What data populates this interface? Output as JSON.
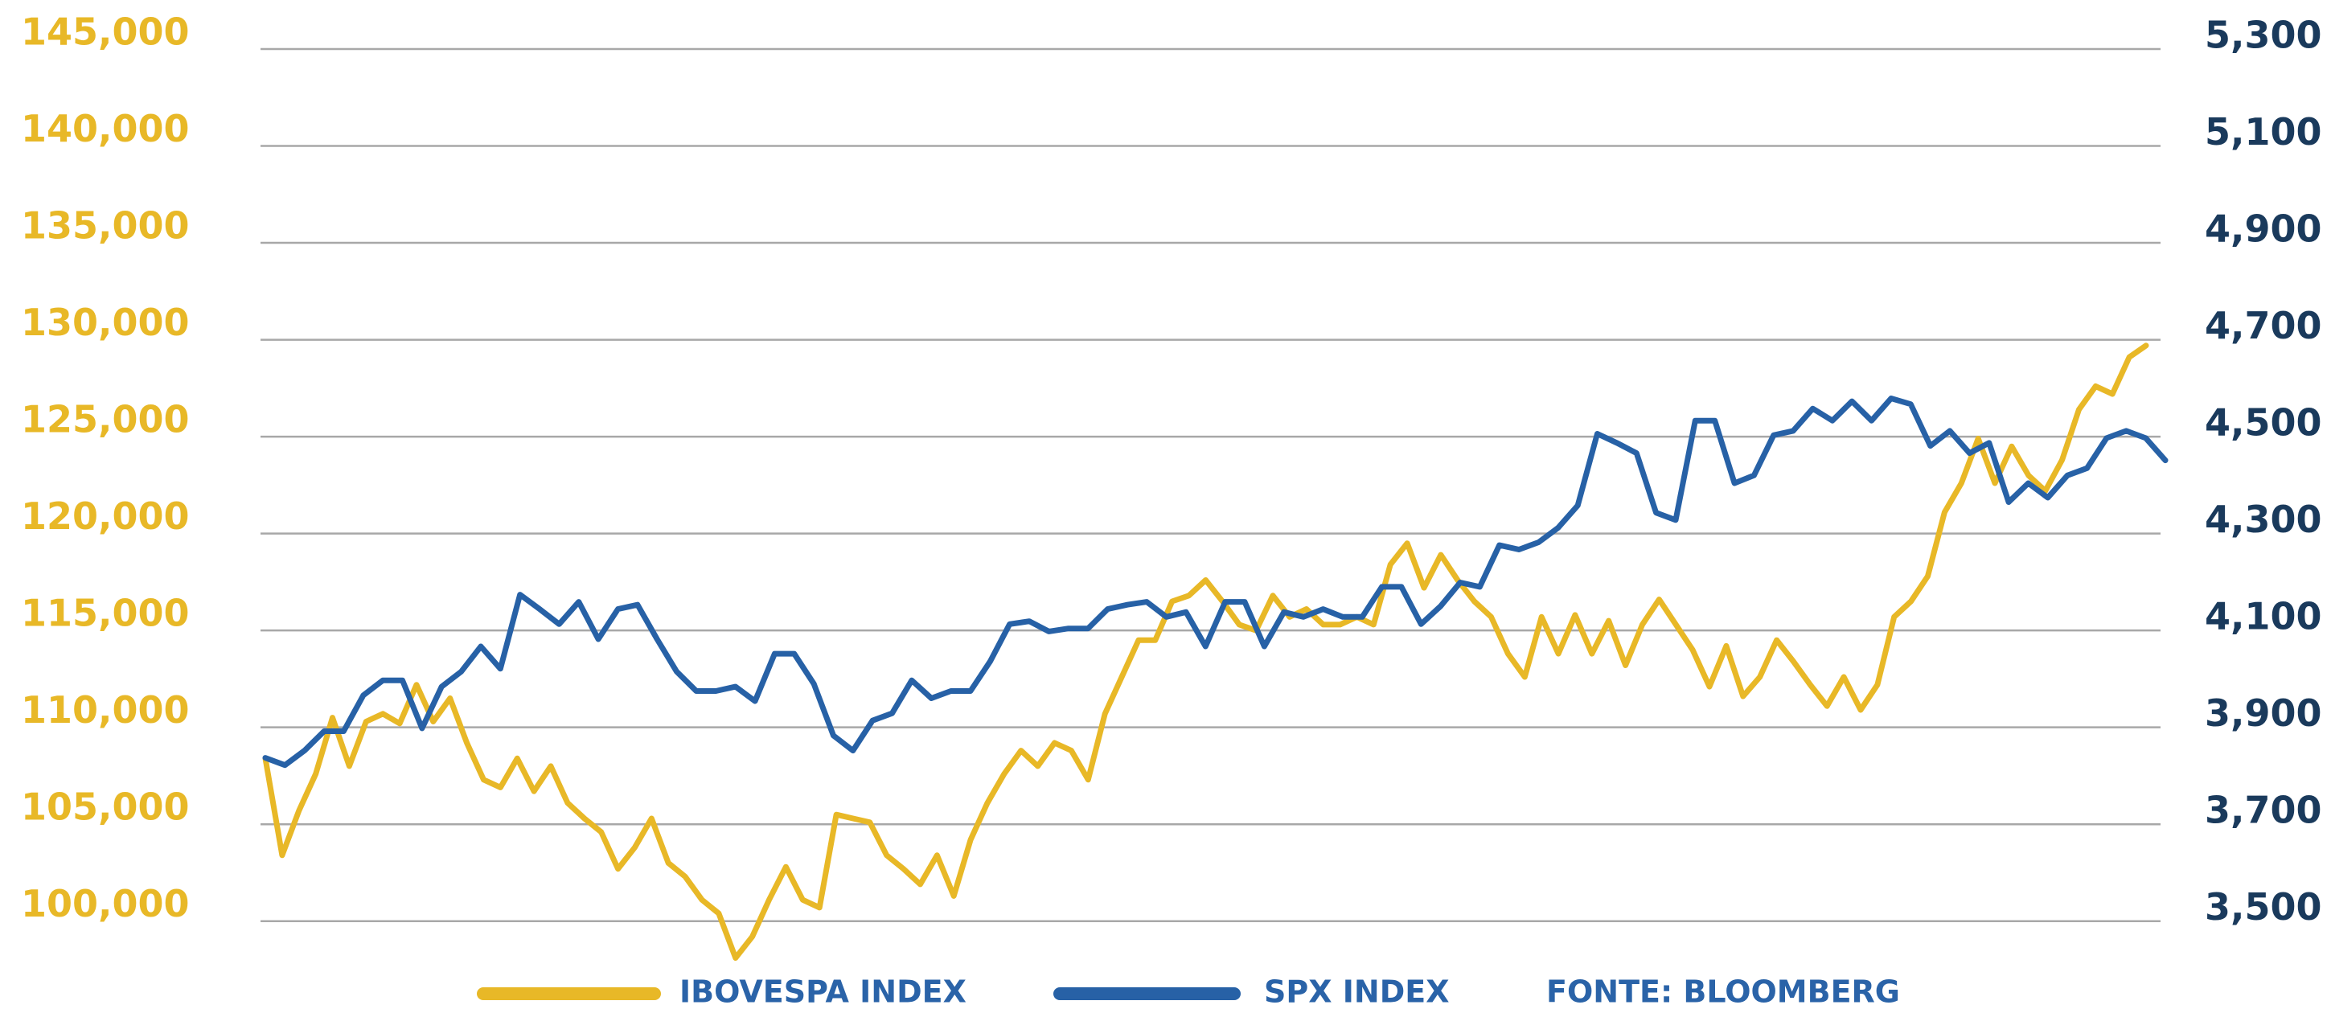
{
  "chart_data": {
    "type": "line",
    "source": "FONTE: BLOOMBERG",
    "ylim": [
      97500,
      145000
    ],
    "yticks": [
      {
        "value": 100000,
        "label": "100,000"
      },
      {
        "value": 105000,
        "label": "105,000"
      },
      {
        "value": 110000,
        "label": "110,000"
      },
      {
        "value": 115000,
        "label": "115,000"
      },
      {
        "value": 120000,
        "label": "120,000"
      },
      {
        "value": 125000,
        "label": "125,000"
      },
      {
        "value": 130000,
        "label": "130,000"
      },
      {
        "value": 135000,
        "label": "135,000"
      },
      {
        "value": 140000,
        "label": "140,000"
      },
      {
        "value": 145000,
        "label": "145,000"
      }
    ],
    "y2lim": [
      3400,
      5300
    ],
    "y2ticks": [
      {
        "value": 3500,
        "label": "3,500"
      },
      {
        "value": 3700,
        "label": "3,700"
      },
      {
        "value": 3900,
        "label": "3,900"
      },
      {
        "value": 4100,
        "label": "4,100"
      },
      {
        "value": 4300,
        "label": "4,300"
      },
      {
        "value": 4500,
        "label": "4,500"
      },
      {
        "value": 4700,
        "label": "4,700"
      },
      {
        "value": 4900,
        "label": "4,900"
      },
      {
        "value": 5100,
        "label": "5,100"
      },
      {
        "value": 5300,
        "label": "5,300"
      }
    ],
    "grid": true,
    "series": [
      {
        "name": "IBOVESPA INDEX",
        "color": "#e8b827",
        "axis": "y",
        "values": [
          108400,
          103400,
          105700,
          107600,
          110500,
          108000,
          110300,
          110700,
          110200,
          112200,
          110300,
          111500,
          109200,
          107300,
          106900,
          108400,
          106700,
          108000,
          106100,
          105300,
          104600,
          102700,
          103800,
          105300,
          103000,
          102300,
          101100,
          100400,
          98100,
          99200,
          101100,
          102800,
          101100,
          100700,
          105500,
          105300,
          105100,
          103400,
          102700,
          101900,
          103400,
          101300,
          104200,
          106100,
          107600,
          108800,
          108000,
          109200,
          108800,
          107300,
          110700,
          112600,
          114500,
          114500,
          116500,
          116800,
          117600,
          116500,
          115300,
          115000,
          116800,
          115700,
          116100,
          115300,
          115300,
          115700,
          115300,
          118400,
          119500,
          117200,
          118900,
          117600,
          116500,
          115700,
          113800,
          112600,
          115700,
          113800,
          115800,
          113800,
          115500,
          113200,
          115300,
          116600,
          115300,
          114000,
          112100,
          114200,
          111600,
          112600,
          114500,
          113400,
          112200,
          111100,
          112600,
          110900,
          112200,
          115700,
          116500,
          117800,
          121100,
          122600,
          124900,
          122600,
          124500,
          123000,
          122200,
          123800,
          126400,
          127600,
          127200,
          129100,
          129700
        ]
      },
      {
        "name": "SPX INDEX",
        "color": "#2761a6",
        "axis": "y2",
        "values": [
          3837,
          3822,
          3852,
          3892,
          3892,
          3966,
          3997,
          3997,
          3898,
          3984,
          4015,
          4067,
          4021,
          4174,
          4144,
          4113,
          4159,
          4082,
          4144,
          4153,
          4082,
          4015,
          3975,
          3975,
          3984,
          3954,
          4052,
          4052,
          3990,
          3883,
          3852,
          3914,
          3929,
          3997,
          3960,
          3975,
          3975,
          4036,
          4113,
          4119,
          4098,
          4104,
          4104,
          4144,
          4153,
          4159,
          4128,
          4138,
          4067,
          4159,
          4159,
          4067,
          4138,
          4128,
          4144,
          4128,
          4128,
          4190,
          4190,
          4113,
          4150,
          4199,
          4190,
          4276,
          4267,
          4282,
          4312,
          4358,
          4506,
          4487,
          4466,
          4343,
          4328,
          4533,
          4533,
          4404,
          4420,
          4503,
          4512,
          4558,
          4533,
          4573,
          4533,
          4579,
          4567,
          4481,
          4512,
          4466,
          4487,
          4365,
          4404,
          4374,
          4420,
          4435,
          4497,
          4512,
          4497,
          4451
        ]
      }
    ]
  }
}
